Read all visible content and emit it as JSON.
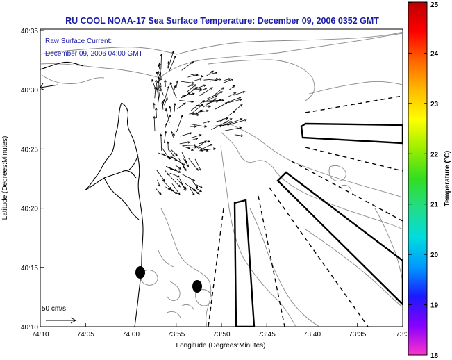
{
  "title": "RU COOL  NOAA-17  Sea Surface Temperature:  December 09, 2006 0352 GMT",
  "current_note": {
    "line1": "Raw Surface Current:",
    "line2": "December 09, 2006 04:00 GMT"
  },
  "scale_label": "50 cm/s",
  "axes": {
    "xlabel": "Longitude (Degrees:Minutes)",
    "ylabel": "Latitude (Degrees:Minutes)",
    "x_ticks": [
      "74:10",
      "74:05",
      "74:00",
      "73:55",
      "73:50",
      "73:45",
      "73:40",
      "73:35",
      "73:3"
    ],
    "y_ticks": [
      "40:35",
      "40:30",
      "40:25",
      "40:20",
      "40:15",
      "40:10"
    ]
  },
  "colorbar": {
    "label": "Temperature (°C)",
    "ticks": [
      "25",
      "24",
      "23",
      "22",
      "21",
      "20",
      "19",
      "18"
    ],
    "min": 18,
    "max": 25,
    "colors": [
      "#ff33cc",
      "#8800ff",
      "#1a1aff",
      "#0099ff",
      "#00dddd",
      "#22dd88",
      "#33dd22",
      "#99ee00",
      "#ffff00",
      "#ffbb00",
      "#ff6600",
      "#ff0000",
      "#bb0000"
    ]
  },
  "colors": {
    "title": "#1a1aa6",
    "coastline": "#000000",
    "bathymetry": "#808080",
    "vectors": "#000000"
  }
}
